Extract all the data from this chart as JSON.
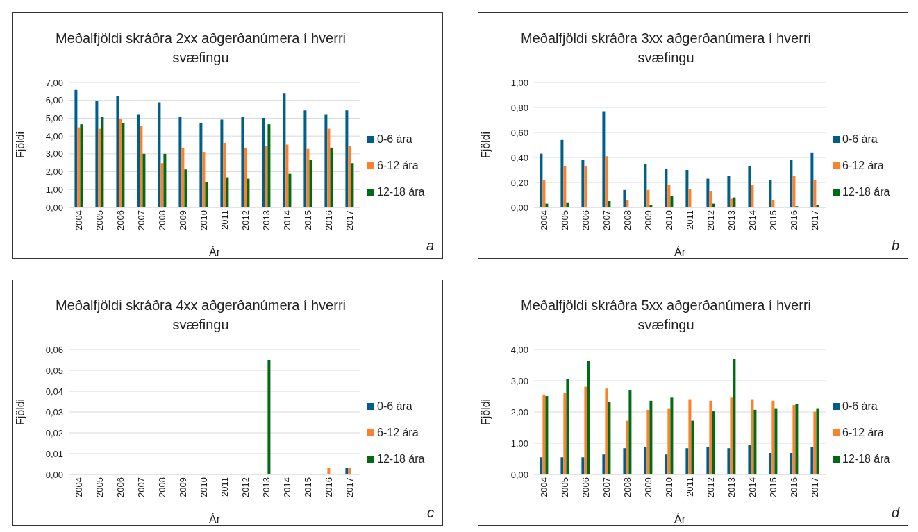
{
  "chart_data": [
    {
      "type": "bar",
      "title": "Meðalfjöldi skráðra 2xx aðgerðanúmera í hverri svæfingu",
      "xlabel": "Ár",
      "ylabel": "Fjöldi",
      "annotations": [
        "a"
      ],
      "legend": "right",
      "grid": "y",
      "categories": [
        "2004",
        "2005",
        "2006",
        "2007",
        "2008",
        "2009",
        "2010",
        "2011",
        "2012",
        "2013",
        "2014",
        "2015",
        "2016",
        "2017"
      ],
      "ylim": [
        0,
        7
      ],
      "yticks": [
        {
          "value": 0,
          "label": "0,00"
        },
        {
          "value": 1,
          "label": "1,00"
        },
        {
          "value": 2,
          "label": "2,00"
        },
        {
          "value": 3,
          "label": "3,00"
        },
        {
          "value": 4,
          "label": "4,00"
        },
        {
          "value": 5,
          "label": "5,00"
        },
        {
          "value": 6,
          "label": "6,00"
        },
        {
          "value": 7,
          "label": "7,00"
        }
      ],
      "series": [
        {
          "name": "0-6 ára",
          "color": "#005f86",
          "values": [
            6.58,
            5.96,
            6.23,
            5.19,
            5.89,
            5.09,
            4.74,
            4.92,
            5.09,
            5.02,
            6.41,
            5.43,
            5.19,
            5.43
          ]
        },
        {
          "name": "6-12 ára",
          "color": "#ff7f2a",
          "values": [
            4.49,
            4.41,
            4.94,
            4.58,
            2.48,
            3.35,
            3.11,
            3.62,
            3.35,
            3.43,
            3.52,
            3.28,
            4.41,
            3.43
          ]
        },
        {
          "name": "12-18 ára",
          "color": "#006b14",
          "values": [
            4.66,
            5.09,
            4.74,
            3.0,
            3.0,
            2.13,
            1.44,
            1.69,
            1.61,
            4.66,
            1.88,
            2.65,
            3.35,
            2.48
          ]
        }
      ]
    },
    {
      "type": "bar",
      "title": "Meðalfjöldi skráðra 3xx aðgerðanúmera í hverri svæfingu",
      "xlabel": "Ár",
      "ylabel": "Fjöldi",
      "annotations": [
        "b"
      ],
      "legend": "right",
      "grid": "y",
      "categories": [
        "2004",
        "2005",
        "2006",
        "2007",
        "2008",
        "2009",
        "2010",
        "2011",
        "2012",
        "2013",
        "2014",
        "2015",
        "2016",
        "2017"
      ],
      "ylim": [
        0,
        1
      ],
      "yticks": [
        {
          "value": 0,
          "label": "0,00"
        },
        {
          "value": 0.2,
          "label": "0,20"
        },
        {
          "value": 0.4,
          "label": "0,40"
        },
        {
          "value": 0.6,
          "label": "0,60"
        },
        {
          "value": 0.8,
          "label": "0,80"
        },
        {
          "value": 1,
          "label": "1,00"
        }
      ],
      "series": [
        {
          "name": "0-6 ára",
          "color": "#005f86",
          "values": [
            0.43,
            0.54,
            0.38,
            0.77,
            0.14,
            0.35,
            0.31,
            0.3,
            0.23,
            0.25,
            0.33,
            0.22,
            0.38,
            0.44
          ]
        },
        {
          "name": "6-12 ára",
          "color": "#ff7f2a",
          "values": [
            0.22,
            0.33,
            0.33,
            0.41,
            0.06,
            0.14,
            0.18,
            0.15,
            0.13,
            0.07,
            0.18,
            0.06,
            0.25,
            0.22
          ]
        },
        {
          "name": "12-18 ára",
          "color": "#006b14",
          "values": [
            0.03,
            0.04,
            0,
            0.05,
            0,
            0.02,
            0.09,
            0,
            0.03,
            0.08,
            0,
            0,
            0.01,
            0.02
          ]
        }
      ]
    },
    {
      "type": "bar",
      "title": "Meðalfjöldi skráðra 4xx aðgerðanúmera í hverri svæfingu",
      "xlabel": "Ár",
      "ylabel": "Fjöldi",
      "annotations": [
        "c"
      ],
      "legend": "right",
      "grid": "y",
      "categories": [
        "2004",
        "2005",
        "2006",
        "2007",
        "2008",
        "2009",
        "2010",
        "2011",
        "2012",
        "2013",
        "2014",
        "2015",
        "2016",
        "2017"
      ],
      "ylim": [
        0,
        0.06
      ],
      "yticks": [
        {
          "value": 0,
          "label": "0,00"
        },
        {
          "value": 0.01,
          "label": "0,01"
        },
        {
          "value": 0.02,
          "label": "0,02"
        },
        {
          "value": 0.03,
          "label": "0,03"
        },
        {
          "value": 0.04,
          "label": "0,04"
        },
        {
          "value": 0.05,
          "label": "0,05"
        },
        {
          "value": 0.06,
          "label": "0,06"
        }
      ],
      "series": [
        {
          "name": "0-6 ára",
          "color": "#005f86",
          "values": [
            0,
            0,
            0,
            0,
            0,
            0,
            0,
            0,
            0,
            0,
            0,
            0,
            0,
            0.003
          ]
        },
        {
          "name": "6-12 ára",
          "color": "#ff7f2a",
          "values": [
            0,
            0,
            0,
            0,
            0,
            0,
            0,
            0,
            0,
            0,
            0,
            0,
            0.003,
            0.003
          ]
        },
        {
          "name": "12-18 ára",
          "color": "#006b14",
          "values": [
            0,
            0,
            0,
            0,
            0,
            0,
            0,
            0,
            0,
            0.055,
            0,
            0,
            0,
            0
          ]
        }
      ]
    },
    {
      "type": "bar",
      "title": "Meðalfjöldi skráðra 5xx aðgerðanúmera í hverri svæfingu",
      "xlabel": "Ár",
      "ylabel": "Fjöldi",
      "annotations": [
        "d"
      ],
      "legend": "right",
      "grid": "y",
      "categories": [
        "2004",
        "2005",
        "2006",
        "2007",
        "2008",
        "2009",
        "2010",
        "2011",
        "2012",
        "2013",
        "2014",
        "2015",
        "2016",
        "2017"
      ],
      "ylim": [
        0,
        4
      ],
      "yticks": [
        {
          "value": 0,
          "label": "0,00"
        },
        {
          "value": 1,
          "label": "1,00"
        },
        {
          "value": 2,
          "label": "2,00"
        },
        {
          "value": 3,
          "label": "3,00"
        },
        {
          "value": 4,
          "label": "4,00"
        }
      ],
      "series": [
        {
          "name": "0-6 ára",
          "color": "#005f86",
          "values": [
            0.55,
            0.55,
            0.55,
            0.64,
            0.84,
            0.89,
            0.64,
            0.84,
            0.89,
            0.84,
            0.94,
            0.69,
            0.69,
            0.89
          ]
        },
        {
          "name": "6-12 ára",
          "color": "#ff7f2a",
          "values": [
            2.56,
            2.61,
            2.81,
            2.75,
            1.72,
            2.07,
            2.12,
            2.41,
            2.36,
            2.46,
            2.41,
            2.36,
            2.22,
            2.01
          ]
        },
        {
          "name": "12-18 ára",
          "color": "#006b14",
          "values": [
            2.51,
            3.05,
            3.64,
            2.31,
            2.71,
            2.36,
            2.46,
            1.72,
            2.02,
            3.69,
            2.07,
            2.12,
            2.26,
            2.12
          ]
        }
      ]
    }
  ]
}
